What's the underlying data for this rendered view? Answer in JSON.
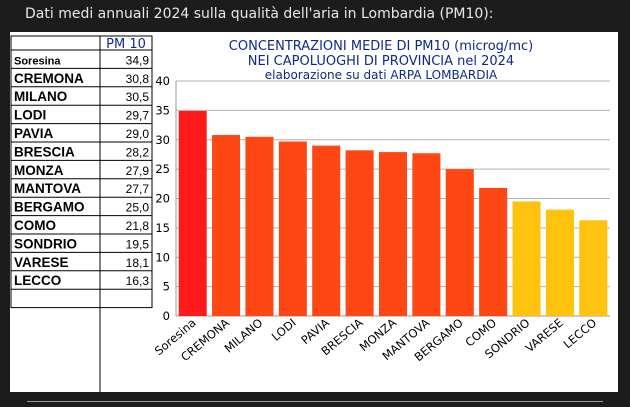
{
  "caption": "Dati medi annuali 2024 sulla qualità dell'aria in Lombardia (PM10):",
  "table": {
    "header": "PM 10",
    "rows": [
      {
        "city": "Soresina",
        "value": "34,9"
      },
      {
        "city": "CREMONA",
        "value": "30,8"
      },
      {
        "city": "MILANO",
        "value": "30,5"
      },
      {
        "city": "LODI",
        "value": "29,7"
      },
      {
        "city": "PAVIA",
        "value": "29,0"
      },
      {
        "city": "BRESCIA",
        "value": "28,2"
      },
      {
        "city": "MONZA",
        "value": "27,9"
      },
      {
        "city": "MANTOVA",
        "value": "27,7"
      },
      {
        "city": "BERGAMO",
        "value": "25,0"
      },
      {
        "city": "COMO",
        "value": "21,8"
      },
      {
        "city": "SONDRIO",
        "value": "19,5"
      },
      {
        "city": "VARESE",
        "value": "18,1"
      },
      {
        "city": "LECCO",
        "value": "16,3"
      }
    ]
  },
  "chart_data": {
    "type": "bar",
    "title": "CONCENTRAZIONI MEDIE DI  PM10 (microg/mc)",
    "subtitle": "NEI CAPOLUOGHI DI PROVINCIA nel 2024",
    "note": "elaborazione su dati ARPA LOMBARDIA",
    "categories": [
      "Soresina",
      "CREMONA",
      "MILANO",
      "LODI",
      "PAVIA",
      "BRESCIA",
      "MONZA",
      "MANTOVA",
      "BERGAMO",
      "COMO",
      "SONDRIO",
      "VARESE",
      "LECCO"
    ],
    "values": [
      34.9,
      30.8,
      30.5,
      29.7,
      29.0,
      28.2,
      27.9,
      27.7,
      25.0,
      21.8,
      19.5,
      18.1,
      16.3
    ],
    "colors": [
      "#ff1a1a",
      "#ff4713",
      "#ff4713",
      "#ff4713",
      "#ff4713",
      "#ff4713",
      "#ff4713",
      "#ff4713",
      "#ff4713",
      "#ff4713",
      "#ffc20e",
      "#ffc20e",
      "#ffc20e"
    ],
    "yticks": [
      "0",
      "5",
      "10",
      "15",
      "20",
      "25",
      "30",
      "35",
      "40"
    ],
    "ylim": [
      0,
      40
    ],
    "grid": true
  }
}
